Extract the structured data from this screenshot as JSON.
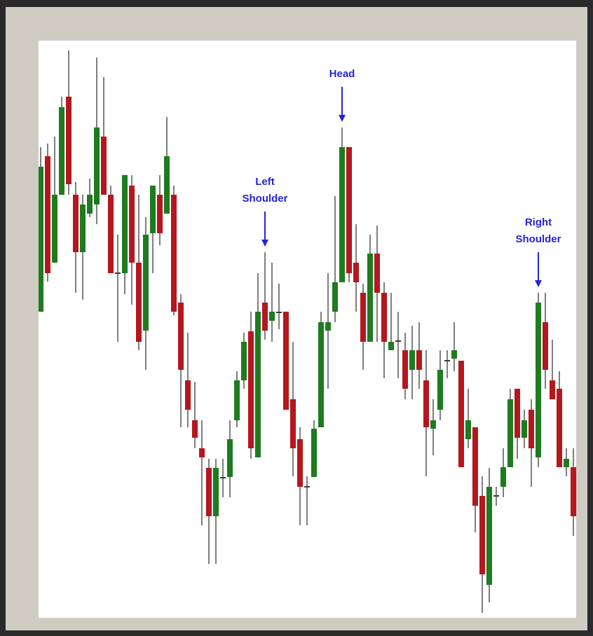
{
  "chart_data": {
    "type": "candlestick",
    "ylim": [
      0,
      824
    ],
    "up_color": "#1e7b1e",
    "down_color": "#b5171e",
    "wick_color": "#3a3a3a",
    "annotation_color": "#2424d8",
    "open": [
      437,
      659,
      507,
      604,
      744,
      604,
      522,
      577,
      590,
      687,
      604,
      493,
      492,
      617,
      507,
      410,
      549,
      604,
      577,
      604,
      450,
      339,
      282,
      242,
      214,
      145,
      201,
      201,
      282,
      339,
      409,
      229,
      450,
      424,
      437,
      437,
      312,
      255,
      188,
      201,
      272,
      410,
      437,
      479,
      672,
      507,
      464,
      394,
      520,
      464,
      382,
      396,
      382,
      354,
      382,
      339,
      270,
      297,
      368,
      370,
      367,
      255,
      272,
      174,
      47,
      175,
      187,
      215,
      327,
      257,
      297,
      229,
      422,
      339,
      327,
      215,
      215
    ],
    "high": [
      672,
      677,
      687,
      744,
      810,
      622,
      604,
      627,
      800,
      772,
      617,
      547,
      632,
      632,
      604,
      572,
      617,
      632,
      715,
      617,
      462,
      407,
      337,
      282,
      227,
      227,
      227,
      282,
      352,
      407,
      437,
      492,
      522,
      507,
      477,
      437,
      394,
      272,
      202,
      282,
      437,
      492,
      602,
      700,
      672,
      562,
      477,
      547,
      560,
      479,
      464,
      437,
      407,
      417,
      422,
      382,
      312,
      382,
      382,
      422,
      367,
      327,
      272,
      202,
      214,
      187,
      242,
      327,
      327,
      297,
      312,
      464,
      464,
      397,
      352,
      242,
      242
    ],
    "low": [
      437,
      480,
      507,
      604,
      604,
      464,
      454,
      572,
      562,
      604,
      492,
      394,
      462,
      447,
      382,
      354,
      492,
      532,
      577,
      432,
      272,
      272,
      242,
      132,
      77,
      77,
      172,
      172,
      272,
      327,
      227,
      229,
      397,
      394,
      412,
      297,
      202,
      132,
      132,
      201,
      272,
      327,
      422,
      479,
      479,
      437,
      354,
      394,
      394,
      342,
      382,
      342,
      312,
      312,
      327,
      202,
      232,
      282,
      342,
      352,
      215,
      242,
      122,
      7,
      22,
      160,
      172,
      215,
      227,
      242,
      187,
      215,
      327,
      312,
      215,
      202,
      117
    ],
    "close": [
      644,
      492,
      604,
      729,
      619,
      522,
      590,
      604,
      700,
      604,
      492,
      491,
      632,
      507,
      394,
      547,
      617,
      549,
      659,
      437,
      354,
      297,
      257,
      229,
      145,
      214,
      200,
      255,
      339,
      394,
      242,
      437,
      410,
      437,
      435,
      297,
      242,
      187,
      186,
      270,
      422,
      422,
      479,
      672,
      492,
      479,
      394,
      520,
      464,
      394,
      394,
      394,
      327,
      382,
      354,
      272,
      282,
      354,
      366,
      382,
      215,
      282,
      160,
      62,
      187,
      173,
      215,
      312,
      257,
      282,
      242,
      450,
      354,
      312,
      215,
      227,
      145
    ],
    "annotations": [
      {
        "text": "Left Shoulder",
        "candle": 32
      },
      {
        "text": "Head",
        "candle": 43
      },
      {
        "text": "Right Shoulder",
        "candle": 71
      }
    ]
  }
}
